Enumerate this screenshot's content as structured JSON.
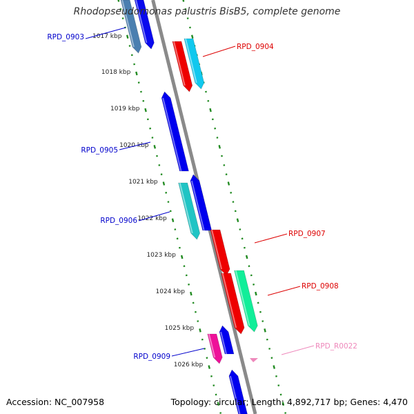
{
  "title": "Rhodopseudomonas palustris BisB5, complete genome",
  "footer": {
    "accession": "Accession: NC_007958",
    "summary": "Topology: circular; Length: 4,892,717 bp; Genes: 4,470"
  },
  "colors": {
    "backbone": "#8a8a8a",
    "tick": "#228b22",
    "label_reverse": "#0000cc",
    "label_forward": "#dd0000",
    "label_rna": "#ee88bb"
  },
  "scale_labels": [
    "1017 kbp",
    "1018 kbp",
    "1019 kbp",
    "1020 kbp",
    "1021 kbp",
    "1022 kbp",
    "1023 kbp",
    "1024 kbp",
    "1025 kbp",
    "1026 kbp"
  ],
  "gene_labels": [
    {
      "text": "RPD_0903",
      "strand": "reverse"
    },
    {
      "text": "RPD_0904",
      "strand": "forward"
    },
    {
      "text": "RPD_0905",
      "strand": "reverse"
    },
    {
      "text": "RPD_0906",
      "strand": "reverse"
    },
    {
      "text": "RPD_0907",
      "strand": "forward"
    },
    {
      "text": "RPD_0908",
      "strand": "forward"
    },
    {
      "text": "RPD_R0022",
      "strand": "rna"
    },
    {
      "text": "RPD_0909",
      "strand": "reverse"
    }
  ]
}
